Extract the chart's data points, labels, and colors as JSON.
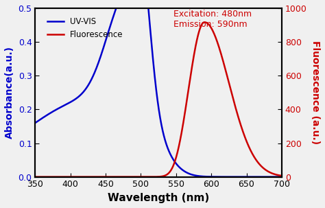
{
  "xlim": [
    350,
    700
  ],
  "ylim_left": [
    0.0,
    0.5
  ],
  "ylim_right": [
    0,
    1000
  ],
  "xticks": [
    350,
    400,
    450,
    500,
    550,
    600,
    650,
    700
  ],
  "yticks_left": [
    0.0,
    0.1,
    0.2,
    0.3,
    0.4,
    0.5
  ],
  "yticks_right": [
    0,
    200,
    400,
    600,
    800,
    1000
  ],
  "xlabel": "Wavelength (nm)",
  "ylabel_left": "Absorbance(a.u.)",
  "ylabel_right": "Fluorescence (a.u.)",
  "legend_uv": "UV-VIS",
  "legend_fl": "Fluorescence",
  "annotation": "Excitation: 480nm\nEmission: 590nm",
  "uv_color": "#0000cc",
  "fl_color": "#cc0000",
  "background": "#f0f0f0",
  "tick_label_color": "black"
}
